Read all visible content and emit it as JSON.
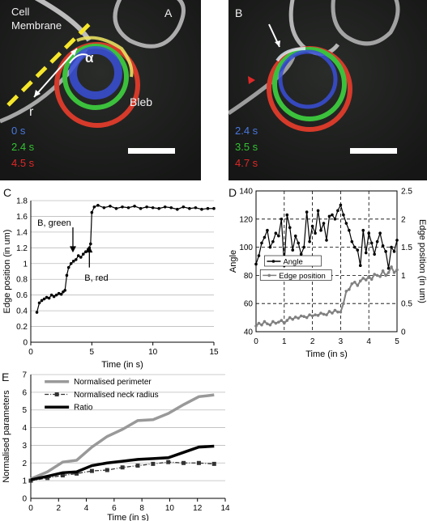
{
  "panels": {
    "A": {
      "letter": "A",
      "labels": {
        "cell_membrane": "Cell\nMembrane",
        "alpha": "α",
        "r": "r",
        "bleb": "Bleb"
      },
      "times": [
        "0 s",
        "2.4 s",
        "4.5 s"
      ],
      "time_colors": [
        "#4a78e0",
        "#33c233",
        "#e02828"
      ]
    },
    "B": {
      "letter": "B",
      "times": [
        "2.4 s",
        "3.5 s",
        "4.7 s"
      ],
      "time_colors": [
        "#4a78e0",
        "#33c233",
        "#e02828"
      ]
    },
    "C": {
      "letter": "C"
    },
    "D": {
      "letter": "D"
    },
    "E": {
      "letter": "E"
    }
  },
  "chart_data": [
    {
      "id": "C",
      "type": "line",
      "xlabel": "Time (in s)",
      "ylabel": "Edge position (in um)",
      "xlim": [
        0,
        15
      ],
      "ylim": [
        0,
        1.8
      ],
      "xticks": [
        0,
        5,
        10,
        15
      ],
      "yticks": [
        0,
        0.2,
        0.4,
        0.6,
        0.8,
        1,
        1.2,
        1.4,
        1.6,
        1.8
      ],
      "grid": "horizontal",
      "annotations": [
        "B, green",
        "B, red"
      ],
      "series": [
        {
          "color": "#000000",
          "x": [
            0.5,
            0.7,
            0.9,
            1.1,
            1.3,
            1.5,
            1.7,
            1.9,
            2.1,
            2.3,
            2.5,
            2.65,
            2.8,
            2.95,
            3.1,
            3.3,
            3.5,
            3.7,
            3.9,
            4.1,
            4.3,
            4.5,
            4.7,
            4.8,
            4.9,
            5.0,
            5.2,
            5.5,
            6.0,
            6.5,
            7.0,
            7.5,
            8.0,
            8.5,
            9.0,
            9.5,
            10.0,
            10.5,
            11.0,
            11.5,
            12.0,
            12.5,
            13.0,
            13.5,
            14.0,
            14.5,
            15.0
          ],
          "y": [
            0.38,
            0.5,
            0.53,
            0.55,
            0.57,
            0.56,
            0.6,
            0.58,
            0.6,
            0.62,
            0.61,
            0.64,
            0.66,
            0.85,
            0.95,
            1.0,
            1.03,
            1.05,
            1.1,
            1.08,
            1.12,
            1.15,
            1.18,
            1.2,
            1.25,
            1.65,
            1.72,
            1.74,
            1.71,
            1.73,
            1.7,
            1.72,
            1.71,
            1.73,
            1.7,
            1.72,
            1.71,
            1.7,
            1.72,
            1.71,
            1.69,
            1.72,
            1.7,
            1.71,
            1.69,
            1.7,
            1.7
          ]
        }
      ]
    },
    {
      "id": "D",
      "type": "line",
      "xlabel": "Time (in s)",
      "ylabel": "Angle",
      "y2label": "Edge position (in um)",
      "xlim": [
        0,
        5
      ],
      "ylim": [
        40,
        140
      ],
      "y2lim": [
        0,
        2.5
      ],
      "xticks": [
        0,
        1,
        2,
        3,
        4,
        5
      ],
      "yticks": [
        40,
        60,
        80,
        100,
        120,
        140
      ],
      "y2ticks": [
        0,
        0.5,
        1,
        1.5,
        2,
        2.5
      ],
      "grid": "dashed",
      "legend": [
        "Angle",
        "Edge position"
      ],
      "series": [
        {
          "name": "Angle",
          "axis": "left",
          "color": "#000000",
          "x": [
            0,
            0.1,
            0.2,
            0.3,
            0.4,
            0.5,
            0.6,
            0.7,
            0.8,
            0.9,
            1.0,
            1.1,
            1.2,
            1.3,
            1.4,
            1.5,
            1.6,
            1.7,
            1.8,
            1.9,
            2.0,
            2.1,
            2.2,
            2.3,
            2.4,
            2.5,
            2.6,
            2.7,
            2.8,
            2.9,
            3.0,
            3.1,
            3.2,
            3.3,
            3.4,
            3.5,
            3.6,
            3.7,
            3.8,
            3.9,
            4.0,
            4.1,
            4.2,
            4.3,
            4.4,
            4.5,
            4.6,
            4.7,
            4.8,
            4.9,
            5.0
          ],
          "y": [
            88,
            94,
            103,
            107,
            112,
            100,
            104,
            110,
            108,
            120,
            87,
            123,
            114,
            98,
            108,
            103,
            95,
            100,
            125,
            104,
            115,
            110,
            126,
            112,
            117,
            105,
            122,
            123,
            120,
            126,
            130,
            123,
            117,
            112,
            104,
            100,
            98,
            87,
            112,
            96,
            110,
            103,
            95,
            104,
            110,
            101,
            97,
            85,
            100,
            97,
            105
          ]
        },
        {
          "name": "Edge position",
          "axis": "right",
          "color": "#808080",
          "x": [
            0,
            0.1,
            0.2,
            0.3,
            0.4,
            0.5,
            0.6,
            0.7,
            0.8,
            0.9,
            1.0,
            1.1,
            1.2,
            1.3,
            1.4,
            1.5,
            1.6,
            1.7,
            1.8,
            1.9,
            2.0,
            2.1,
            2.2,
            2.3,
            2.4,
            2.5,
            2.6,
            2.7,
            2.8,
            2.9,
            3.0,
            3.1,
            3.2,
            3.3,
            3.4,
            3.5,
            3.6,
            3.7,
            3.8,
            3.9,
            4.0,
            4.1,
            4.2,
            4.3,
            4.4,
            4.5,
            4.6,
            4.7,
            4.8,
            4.9,
            5.0
          ],
          "y": [
            0.1,
            0.15,
            0.12,
            0.18,
            0.14,
            0.12,
            0.18,
            0.15,
            0.17,
            0.2,
            0.15,
            0.2,
            0.25,
            0.22,
            0.26,
            0.24,
            0.28,
            0.27,
            0.25,
            0.3,
            0.28,
            0.3,
            0.29,
            0.33,
            0.31,
            0.3,
            0.36,
            0.33,
            0.38,
            0.35,
            0.35,
            0.5,
            0.72,
            0.75,
            0.85,
            0.88,
            0.82,
            0.9,
            0.95,
            0.92,
            0.98,
            0.93,
            1.02,
            1.0,
            0.98,
            1.08,
            1.0,
            1.05,
            1.15,
            1.05,
            1.1
          ]
        }
      ]
    },
    {
      "id": "E",
      "type": "line",
      "xlabel": "Time (in s)",
      "ylabel": "Normalised parameters",
      "xlim": [
        0,
        14
      ],
      "ylim": [
        0,
        7
      ],
      "xticks": [
        0,
        2,
        4,
        6,
        8,
        10,
        12,
        14
      ],
      "yticks": [
        0,
        1,
        2,
        3,
        4,
        5,
        6,
        7
      ],
      "grid": "horizontal",
      "legend": [
        "Normalised perimeter",
        "Normalised neck radius",
        "Ratio"
      ],
      "series": [
        {
          "name": "Normalised perimeter",
          "color": "#999999",
          "style": "solid-thick",
          "x": [
            0,
            1.2,
            2.3,
            3.3,
            4.4,
            5.5,
            6.6,
            7.7,
            8.8,
            9.9,
            11.0,
            12.1,
            13.2
          ],
          "y": [
            1.1,
            1.5,
            2.05,
            2.15,
            2.9,
            3.5,
            3.9,
            4.4,
            4.45,
            4.8,
            5.3,
            5.75,
            5.85
          ]
        },
        {
          "name": "Normalised neck radius",
          "color": "#333333",
          "style": "dash-dot",
          "x": [
            0,
            1.2,
            2.3,
            3.3,
            4.4,
            5.5,
            6.6,
            7.7,
            8.8,
            9.9,
            11.0,
            12.1,
            13.2
          ],
          "y": [
            1.0,
            1.15,
            1.3,
            1.4,
            1.55,
            1.6,
            1.75,
            1.85,
            1.95,
            2.05,
            2.0,
            2.0,
            1.95
          ]
        },
        {
          "name": "Ratio",
          "color": "#000000",
          "style": "solid-thick",
          "x": [
            0,
            1.2,
            2.3,
            3.3,
            4.4,
            5.5,
            6.6,
            7.7,
            8.8,
            9.9,
            11.0,
            12.1,
            13.2
          ],
          "y": [
            1.05,
            1.25,
            1.45,
            1.5,
            1.85,
            2.0,
            2.1,
            2.2,
            2.25,
            2.3,
            2.6,
            2.9,
            2.95
          ]
        }
      ]
    }
  ]
}
